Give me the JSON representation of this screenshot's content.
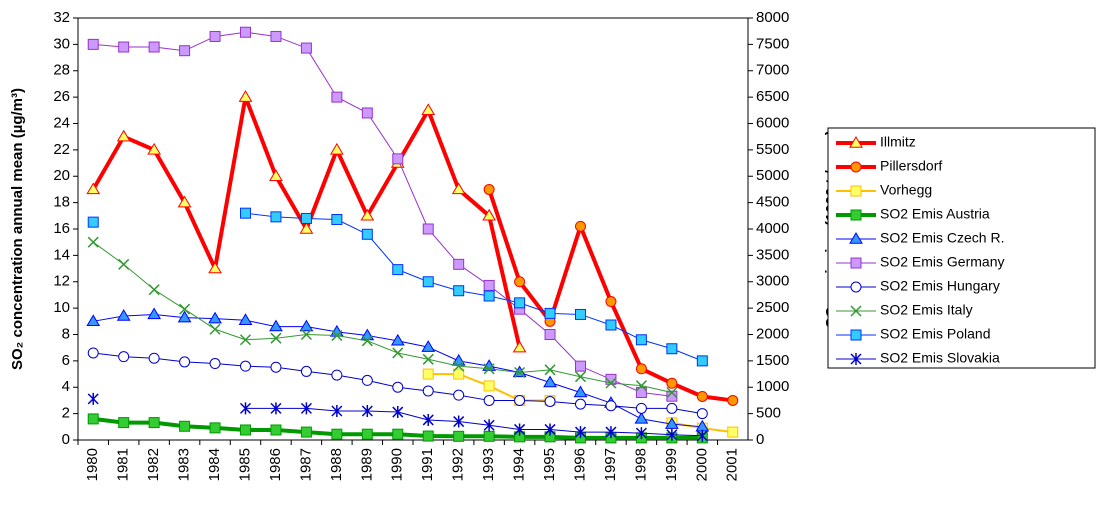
{
  "chart_data": {
    "type": "line",
    "y_label": "SO₂ concentration annual mean (µg/m³)",
    "y2_label": "SO₂ emission (1000 t / year)",
    "categories": [
      "1980",
      "1981",
      "1982",
      "1983",
      "1984",
      "1985",
      "1986",
      "1987",
      "1988",
      "1989",
      "1990",
      "1991",
      "1992",
      "1993",
      "1994",
      "1995",
      "1996",
      "1997",
      "1998",
      "1999",
      "2000",
      "2001"
    ],
    "ylim": [
      0,
      32
    ],
    "yticks": [
      0,
      2,
      4,
      6,
      8,
      10,
      12,
      14,
      16,
      18,
      20,
      22,
      24,
      26,
      28,
      30,
      32
    ],
    "y2lim": [
      0,
      8000
    ],
    "y2ticks": [
      0,
      500,
      1000,
      1500,
      2000,
      2500,
      3000,
      3500,
      4000,
      4500,
      5000,
      5500,
      6000,
      6500,
      7000,
      7500,
      8000
    ],
    "grid": false,
    "legend": "right",
    "series": [
      {
        "name": "Illmitz",
        "color": "#ff0000",
        "marker": "triangle",
        "marker_fill": "#ffff66",
        "width": 4,
        "values": [
          19,
          23,
          22,
          18,
          13,
          26,
          20,
          16,
          22,
          17,
          21,
          25,
          19,
          17,
          7,
          null,
          null,
          null,
          null,
          null,
          null,
          null
        ]
      },
      {
        "name": "Pillersdorf",
        "color": "#ff0000",
        "marker": "circle",
        "marker_fill": "#ff9900",
        "width": 4,
        "values": [
          null,
          null,
          null,
          null,
          null,
          null,
          null,
          null,
          null,
          null,
          null,
          null,
          null,
          19,
          12,
          9,
          16.2,
          10.5,
          5.4,
          4.3,
          3.3,
          3
        ]
      },
      {
        "name": "Vorhegg",
        "color": "#ffc000",
        "marker": "square",
        "marker_fill": "#ffff66",
        "width": 2,
        "values": [
          null,
          null,
          null,
          null,
          null,
          null,
          null,
          null,
          null,
          null,
          null,
          5,
          5,
          4.1,
          3,
          3,
          null,
          null,
          null,
          1.3,
          0.9,
          0.6
        ]
      },
      {
        "name": "SO2 Emis Austria",
        "color": "#009900",
        "marker": "square",
        "marker_fill": "#33cc33",
        "width": 4,
        "axis": "y2",
        "values": [
          400,
          330,
          330,
          260,
          230,
          190,
          190,
          150,
          110,
          110,
          110,
          75,
          70,
          70,
          60,
          60,
          40,
          40,
          40,
          40,
          40,
          null
        ]
      },
      {
        "name": "SO2 Emis Czech R.",
        "color": "#0000ff",
        "marker": "triangle",
        "marker_fill": "#3399ff",
        "width": 1,
        "axis": "y2",
        "values": [
          2250,
          2350,
          2380,
          2320,
          2300,
          2270,
          2150,
          2150,
          2050,
          1980,
          1880,
          1760,
          1500,
          1400,
          1280,
          1090,
          900,
          700,
          400,
          300,
          250,
          null
        ]
      },
      {
        "name": "SO2 Emis Germany",
        "color": "#9933cc",
        "marker": "square",
        "marker_fill": "#cc99ff",
        "width": 1,
        "axis": "y2",
        "values": [
          7500,
          7450,
          7450,
          7380,
          7650,
          7730,
          7650,
          7430,
          6500,
          6200,
          5330,
          4000,
          3330,
          2930,
          2480,
          2000,
          1400,
          1150,
          900,
          830,
          null,
          null
        ]
      },
      {
        "name": "SO2 Emis Hungary",
        "color": "#0000cc",
        "marker": "circle",
        "marker_fill": "#ffffff",
        "width": 1,
        "axis": "y2",
        "values": [
          1650,
          1580,
          1550,
          1480,
          1450,
          1400,
          1380,
          1300,
          1230,
          1130,
          1000,
          930,
          850,
          750,
          750,
          730,
          680,
          650,
          600,
          600,
          500,
          null
        ]
      },
      {
        "name": "SO2 Emis Italy",
        "color": "#339933",
        "marker": "x",
        "marker_fill": "none",
        "width": 1,
        "axis": "y2",
        "values": [
          3750,
          3330,
          2850,
          2480,
          2100,
          1900,
          1930,
          2000,
          1980,
          1880,
          1650,
          1530,
          1400,
          1350,
          1280,
          1330,
          1200,
          1080,
          1030,
          900,
          null,
          null
        ]
      },
      {
        "name": "SO2 Emis Poland",
        "color": "#0033ff",
        "marker": "square",
        "marker_fill": "#33ccff",
        "width": 1,
        "axis": "y2",
        "values": [
          4130,
          null,
          null,
          null,
          null,
          4300,
          4230,
          4200,
          4180,
          3900,
          3230,
          3000,
          2830,
          2730,
          2600,
          2400,
          2380,
          2180,
          1900,
          1730,
          1500,
          null
        ]
      },
      {
        "name": "SO2 Emis Slovakia",
        "color": "#0000cc",
        "marker": "star",
        "marker_fill": "none",
        "width": 1,
        "axis": "y2",
        "values": [
          780,
          null,
          null,
          null,
          null,
          600,
          600,
          600,
          550,
          550,
          530,
          380,
          350,
          280,
          200,
          200,
          150,
          150,
          130,
          100,
          80,
          null
        ]
      }
    ]
  }
}
